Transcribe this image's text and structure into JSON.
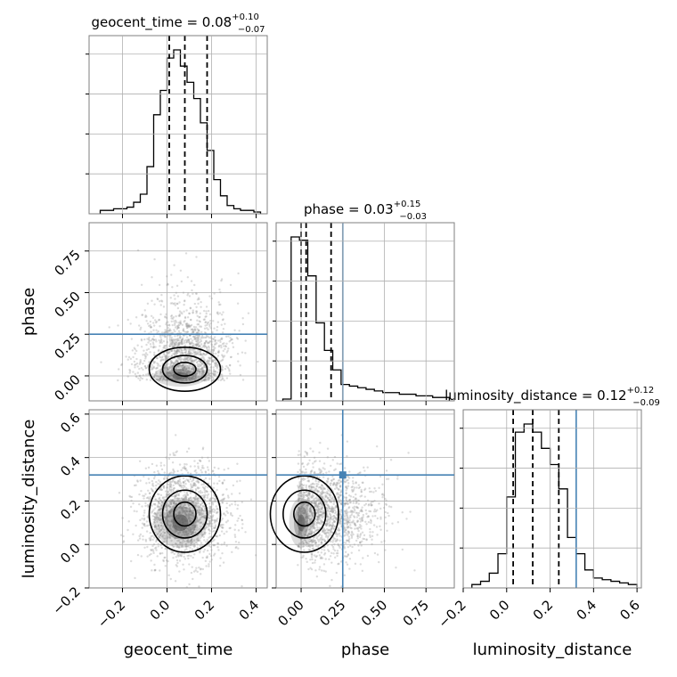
{
  "figure": {
    "colors": {
      "truth": "#4682b4",
      "hist": "#000000",
      "grid": "#b0b0b0",
      "point": "#9a9a9a"
    }
  },
  "chart_data": {
    "type": "corner",
    "parameters": [
      "geocent_time",
      "phase",
      "luminosity_distance"
    ],
    "truths": {
      "phase": 0.25,
      "luminosity_distance": 0.32
    },
    "titles": [
      {
        "param": "geocent_time",
        "text": "geocent_time = 0.08",
        "sup": "+0.10",
        "sub": "−0.07"
      },
      {
        "param": "phase",
        "text": "phase = 0.03",
        "sup": "+0.15",
        "sub": "−0.03"
      },
      {
        "param": "luminosity_distance",
        "text": "luminosity_distance = 0.12",
        "sup": "+0.12",
        "sub": "−0.09"
      }
    ],
    "axis_ranges": {
      "geocent_time": [
        -0.35,
        0.45
      ],
      "phase": [
        -0.15,
        0.92
      ],
      "luminosity_distance": [
        -0.2,
        0.62
      ]
    },
    "xlabels": [
      "geocent_time",
      "phase",
      "luminosity_distance"
    ],
    "ylabels": [
      "phase",
      "luminosity_distance"
    ],
    "ticks": {
      "geocent_time": [
        "−0.2",
        "0.0",
        "0.2",
        "0.4"
      ],
      "phase": [
        "0.00",
        "0.25",
        "0.50",
        "0.75"
      ],
      "luminosity_distance": [
        "−0.2",
        "0.0",
        "0.2",
        "0.4",
        "0.6"
      ]
    },
    "tick_values": {
      "geocent_time": [
        -0.2,
        0.0,
        0.2,
        0.4
      ],
      "phase": [
        0.0,
        0.25,
        0.5,
        0.75
      ],
      "luminosity_distance": [
        -0.2,
        0.0,
        0.2,
        0.4,
        0.6
      ]
    },
    "quantiles": {
      "geocent_time": [
        0.01,
        0.08,
        0.18
      ],
      "phase": [
        0.0,
        0.03,
        0.18
      ],
      "luminosity_distance": [
        0.03,
        0.12,
        0.24
      ]
    },
    "histograms": {
      "geocent_time": {
        "edges": [
          -0.3,
          -0.27,
          -0.24,
          -0.21,
          -0.18,
          -0.15,
          -0.12,
          -0.09,
          -0.06,
          -0.03,
          0.0,
          0.03,
          0.06,
          0.09,
          0.12,
          0.15,
          0.18,
          0.21,
          0.24,
          0.27,
          0.3,
          0.33,
          0.36,
          0.39,
          0.42
        ],
        "counts": [
          1,
          1,
          2,
          2,
          3,
          6,
          11,
          28,
          60,
          75,
          95,
          100,
          90,
          80,
          70,
          55,
          38,
          20,
          10,
          4,
          2,
          1,
          1,
          0
        ]
      },
      "phase": {
        "edges": [
          -0.11,
          -0.06,
          -0.01,
          0.04,
          0.09,
          0.14,
          0.19,
          0.24,
          0.29,
          0.34,
          0.39,
          0.44,
          0.49,
          0.54,
          0.59,
          0.64,
          0.69,
          0.74,
          0.79,
          0.84,
          0.89
        ],
        "counts": [
          0,
          100,
          98,
          76,
          47,
          30,
          18,
          9,
          8,
          7,
          6,
          5,
          4,
          4,
          3,
          3,
          2,
          2,
          1,
          1
        ]
      },
      "luminosity_distance": {
        "edges": [
          -0.16,
          -0.12,
          -0.08,
          -0.04,
          0.0,
          0.04,
          0.08,
          0.12,
          0.16,
          0.2,
          0.24,
          0.28,
          0.32,
          0.36,
          0.4,
          0.44,
          0.48,
          0.52,
          0.56,
          0.6
        ],
        "counts": [
          1,
          3,
          8,
          20,
          55,
          95,
          100,
          95,
          85,
          75,
          60,
          30,
          20,
          10,
          5,
          4,
          3,
          2,
          1
        ]
      }
    }
  }
}
